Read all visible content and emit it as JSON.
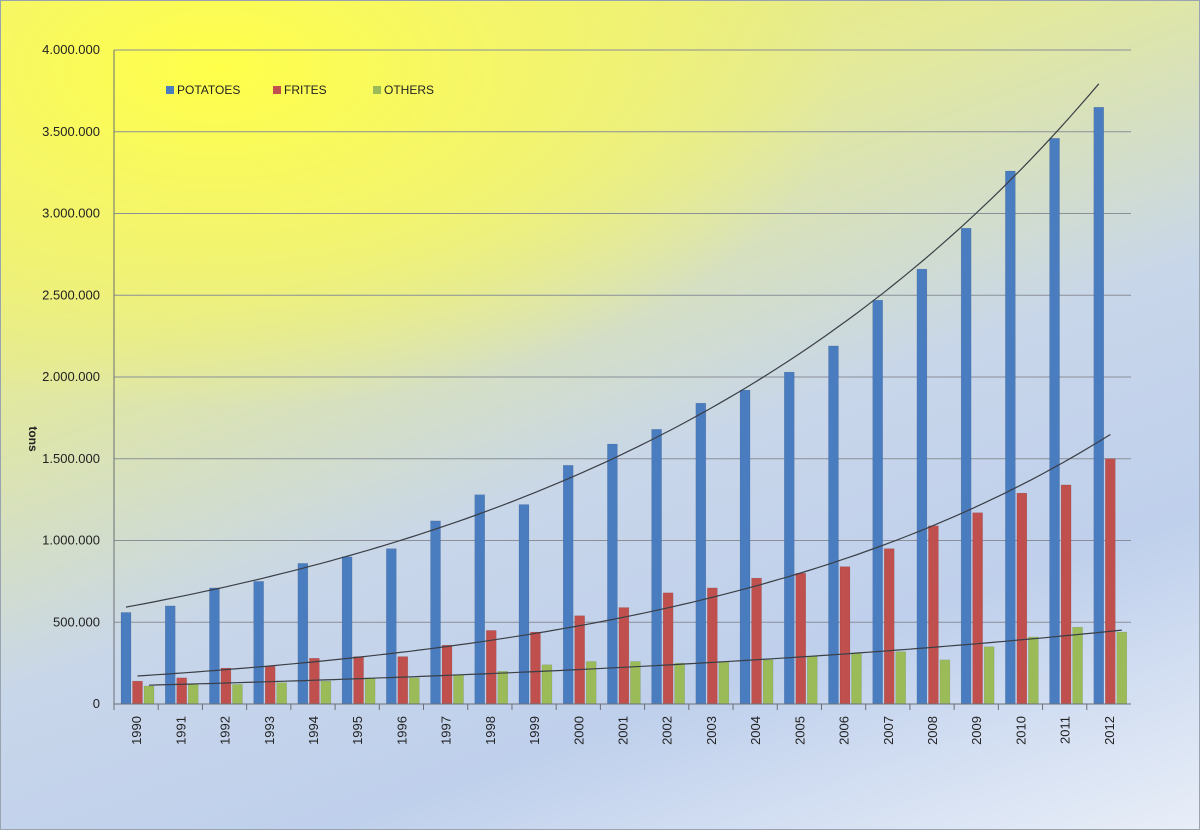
{
  "chart_data": {
    "type": "bar",
    "title": "",
    "xlabel": "",
    "ylabel": "tons",
    "ylim": [
      0,
      4000000
    ],
    "yticks": [
      0,
      500000,
      1000000,
      1500000,
      2000000,
      2500000,
      3000000,
      3500000,
      4000000
    ],
    "ytick_labels": [
      "0",
      "500.000",
      "1.000.000",
      "1.500.000",
      "2.000.000",
      "2.500.000",
      "3.000.000",
      "3.500.000",
      "4.000.000"
    ],
    "grid": true,
    "legend_position": "top-left",
    "trendlines": "exponential, one per series",
    "categories": [
      "1990",
      "1991",
      "1992",
      "1993",
      "1994",
      "1995",
      "1996",
      "1997",
      "1998",
      "1999",
      "2000",
      "2001",
      "2002",
      "2003",
      "2004",
      "2005",
      "2006",
      "2007",
      "2008",
      "2009",
      "2010",
      "2011",
      "2012"
    ],
    "series": [
      {
        "name": "POTATOES",
        "color": "#4a7cc0",
        "values": [
          560000,
          600000,
          710000,
          750000,
          860000,
          900000,
          950000,
          1120000,
          1280000,
          1220000,
          1460000,
          1590000,
          1680000,
          1840000,
          1920000,
          2030000,
          2190000,
          2470000,
          2660000,
          2910000,
          3260000,
          3460000,
          3650000
        ]
      },
      {
        "name": "FRITES",
        "color": "#c0504d",
        "values": [
          140000,
          160000,
          220000,
          230000,
          280000,
          290000,
          290000,
          360000,
          450000,
          440000,
          540000,
          590000,
          680000,
          710000,
          770000,
          800000,
          840000,
          950000,
          1090000,
          1170000,
          1290000,
          1340000,
          1500000
        ]
      },
      {
        "name": "OTHERS",
        "color": "#9bbb59",
        "values": [
          110000,
          120000,
          120000,
          130000,
          140000,
          160000,
          160000,
          180000,
          200000,
          240000,
          260000,
          260000,
          250000,
          260000,
          270000,
          290000,
          310000,
          320000,
          270000,
          350000,
          410000,
          470000,
          440000
        ]
      }
    ]
  }
}
